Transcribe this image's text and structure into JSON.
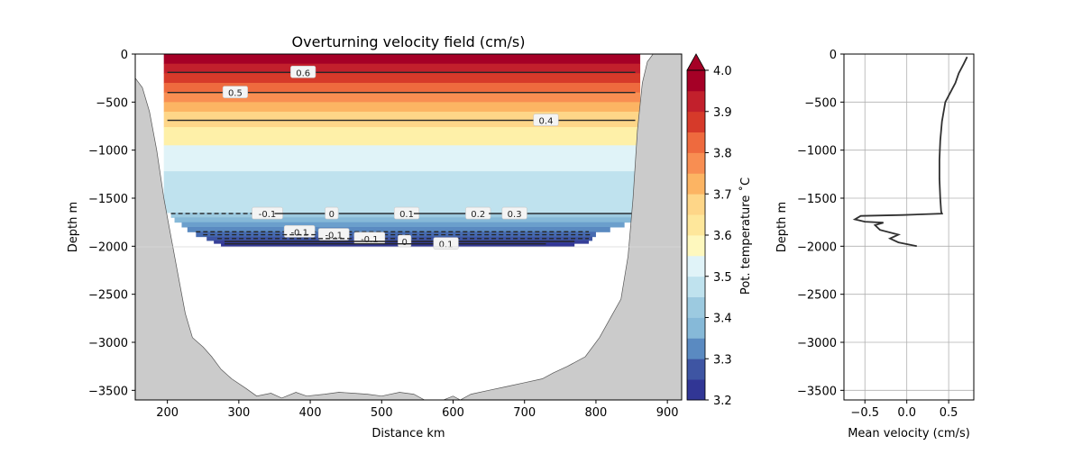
{
  "chart_data": [
    {
      "type": "heatmap",
      "title": "Overturning velocity field (cm/s)",
      "xlabel": "Distance km",
      "ylabel": "Depth m",
      "xlim": [
        155,
        920
      ],
      "ylim": [
        -3600,
        0
      ],
      "x_ticks": [
        200,
        300,
        400,
        500,
        600,
        700,
        800,
        900
      ],
      "y_ticks": [
        0,
        -500,
        -1000,
        -1500,
        -2000,
        -2500,
        -3000,
        -3500
      ],
      "temperature_bands": [
        {
          "top": 0,
          "bottom": -100,
          "value": 4.0,
          "color": "#a50026"
        },
        {
          "top": -100,
          "bottom": -200,
          "value": 3.95,
          "color": "#c2202c"
        },
        {
          "top": -200,
          "bottom": -300,
          "value": 3.9,
          "color": "#d63a2a"
        },
        {
          "top": -300,
          "bottom": -400,
          "value": 3.85,
          "color": "#ee6a3e"
        },
        {
          "top": -400,
          "bottom": -500,
          "value": 3.8,
          "color": "#f88e52"
        },
        {
          "top": -500,
          "bottom": -600,
          "value": 3.75,
          "color": "#fcb463"
        },
        {
          "top": -600,
          "bottom": -760,
          "value": 3.7,
          "color": "#fed688"
        },
        {
          "top": -760,
          "bottom": -950,
          "value": 3.65,
          "color": "#fef0a8"
        },
        {
          "top": -950,
          "bottom": -1220,
          "value": 3.5,
          "color": "#e0f3f8"
        },
        {
          "top": -1220,
          "bottom": -1650,
          "value": 3.45,
          "color": "#bfe2ee"
        }
      ],
      "deep_layers": [
        {
          "top": -1650,
          "bottom": -1700,
          "x0": 205,
          "x1": 860,
          "color": "#9ccae0"
        },
        {
          "top": -1700,
          "bottom": -1750,
          "x0": 210,
          "x1": 850,
          "color": "#86b9d8"
        },
        {
          "top": -1750,
          "bottom": -1800,
          "x0": 220,
          "x1": 840,
          "color": "#6b9fcc"
        },
        {
          "top": -1800,
          "bottom": -1850,
          "x0": 228,
          "x1": 820,
          "color": "#5a8ac1"
        },
        {
          "top": -1850,
          "bottom": -1900,
          "x0": 240,
          "x1": 800,
          "color": "#466bb0"
        },
        {
          "top": -1900,
          "bottom": -1940,
          "x0": 255,
          "x1": 795,
          "color": "#3e55a3"
        },
        {
          "top": -1940,
          "bottom": -1970,
          "x0": 265,
          "x1": 790,
          "color": "#363f98"
        },
        {
          "top": -1970,
          "bottom": -2000,
          "x0": 275,
          "x1": 770,
          "color": "#313695"
        }
      ],
      "velocity_contours": [
        {
          "value": "0.6",
          "depth": -190,
          "x0": 200,
          "x1": 855,
          "label_x": 390
        },
        {
          "value": "0.5",
          "depth": -400,
          "x0": 200,
          "x1": 855,
          "label_x": 295
        },
        {
          "value": "0.4",
          "depth": -690,
          "x0": 200,
          "x1": 855,
          "label_x": 730
        },
        {
          "value": "-0.1",
          "depth": -1660,
          "x0": 205,
          "x1": 330,
          "label_x": 340
        },
        {
          "value": "0",
          "depth": -1660,
          "x0": 350,
          "x1": 430,
          "label_x": 430
        },
        {
          "value": "0.1",
          "depth": -1660,
          "x0": 440,
          "x1": 520,
          "label_x": 535
        },
        {
          "value": "0.2",
          "depth": -1660,
          "x0": 545,
          "x1": 620,
          "label_x": 635
        },
        {
          "value": "0.3",
          "depth": -1660,
          "x0": 650,
          "x1": 860,
          "label_x": 686
        },
        {
          "value": "-0.1",
          "depth": -1850,
          "x0": 240,
          "x1": 790,
          "label_x": 385
        },
        {
          "value": "-0.1",
          "depth": -1880,
          "x0": 250,
          "x1": 795,
          "label_x": 433
        },
        {
          "value": "-0.1",
          "depth": -1920,
          "x0": 270,
          "x1": 790,
          "label_x": 483
        },
        {
          "value": "0",
          "depth": -1950,
          "x0": 280,
          "x1": 770,
          "label_x": 532
        },
        {
          "value": "0.1",
          "depth": -1975,
          "x0": 280,
          "x1": 730,
          "label_x": 590
        }
      ],
      "bathymetry": [
        [
          155,
          -250
        ],
        [
          165,
          -350
        ],
        [
          175,
          -600
        ],
        [
          185,
          -1000
        ],
        [
          195,
          -1500
        ],
        [
          205,
          -1900
        ],
        [
          215,
          -2300
        ],
        [
          225,
          -2700
        ],
        [
          235,
          -2950
        ],
        [
          250,
          -3050
        ],
        [
          262,
          -3150
        ],
        [
          275,
          -3280
        ],
        [
          290,
          -3380
        ],
        [
          310,
          -3480
        ],
        [
          325,
          -3560
        ],
        [
          345,
          -3530
        ],
        [
          360,
          -3580
        ],
        [
          380,
          -3520
        ],
        [
          395,
          -3560
        ],
        [
          420,
          -3540
        ],
        [
          440,
          -3520
        ],
        [
          460,
          -3530
        ],
        [
          480,
          -3540
        ],
        [
          500,
          -3560
        ],
        [
          525,
          -3520
        ],
        [
          545,
          -3540
        ],
        [
          560,
          -3600
        ],
        [
          580,
          -3620
        ],
        [
          600,
          -3560
        ],
        [
          610,
          -3600
        ],
        [
          625,
          -3540
        ],
        [
          650,
          -3500
        ],
        [
          675,
          -3460
        ],
        [
          700,
          -3420
        ],
        [
          725,
          -3380
        ],
        [
          740,
          -3320
        ],
        [
          760,
          -3250
        ],
        [
          785,
          -3150
        ],
        [
          805,
          -2950
        ],
        [
          820,
          -2750
        ],
        [
          835,
          -2550
        ],
        [
          845,
          -2100
        ],
        [
          852,
          -1500
        ],
        [
          858,
          -800
        ],
        [
          865,
          -300
        ],
        [
          872,
          -80
        ],
        [
          880,
          0
        ]
      ],
      "colorbar": {
        "label": "Pot. temperature ˚C",
        "ticks": [
          "4.0",
          "3.9",
          "3.8",
          "3.7",
          "3.6",
          "3.5",
          "3.4",
          "3.3",
          "3.2"
        ],
        "range": [
          3.2,
          4.0
        ],
        "colors": [
          "#313695",
          "#3e55a3",
          "#5a8ac1",
          "#86b9d8",
          "#9ccae0",
          "#bfe2ee",
          "#e0f3f8",
          "#fef8be",
          "#fee79b",
          "#fed688",
          "#fcb463",
          "#f88e52",
          "#ee6a3e",
          "#d63a2a",
          "#c2202c",
          "#a50026"
        ]
      }
    },
    {
      "type": "line",
      "title": "",
      "xlabel": "Mean velocity (cm/s)",
      "ylabel": "Depth m",
      "xlim": [
        -0.75,
        0.8
      ],
      "ylim": [
        -3600,
        0
      ],
      "x_ticks": [
        "−0.5",
        "0.0",
        "0.5"
      ],
      "x_tick_values": [
        -0.5,
        0.0,
        0.5
      ],
      "y_ticks": [
        0,
        -500,
        -1000,
        -1500,
        -2000,
        -2500,
        -3000,
        -3500
      ],
      "grid": true,
      "series": [
        {
          "x": [
            0.72,
            0.68,
            0.62,
            0.58,
            0.52,
            0.46,
            0.42,
            0.4,
            0.39,
            0.39,
            0.4,
            0.41,
            0.42,
            -0.05,
            -0.55,
            -0.62,
            -0.5,
            -0.28,
            -0.38,
            -0.32,
            -0.1,
            -0.2,
            -0.1,
            0.12
          ],
          "y": [
            -30,
            -100,
            -200,
            -300,
            -400,
            -500,
            -700,
            -900,
            -1100,
            -1300,
            -1500,
            -1640,
            -1660,
            -1675,
            -1685,
            -1720,
            -1745,
            -1755,
            -1780,
            -1830,
            -1880,
            -1920,
            -1960,
            -2000
          ]
        }
      ]
    }
  ]
}
